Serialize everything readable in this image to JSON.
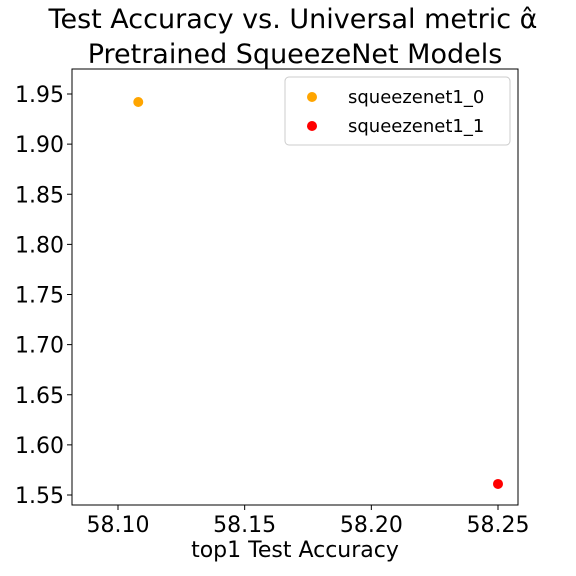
{
  "chart_data": {
    "type": "scatter",
    "title": [
      "Test Accuracy vs. Universal metric α̂",
      "Pretrained SqueezeNet Models"
    ],
    "xlabel": "top1 Test Accuracy",
    "ylabel": "",
    "xlim": [
      58.1,
      58.25
    ],
    "ylim": [
      1.55,
      1.95
    ],
    "x_ticks": [
      "58.10",
      "58.15",
      "58.20",
      "58.25"
    ],
    "y_ticks": [
      "1.55",
      "1.60",
      "1.65",
      "1.70",
      "1.75",
      "1.80",
      "1.85",
      "1.90",
      "1.95"
    ],
    "grid": false,
    "legend_position": "top-right",
    "series": [
      {
        "name": "squeezenet1_0",
        "color": "#FFA500",
        "points": [
          {
            "x": 58.108,
            "y": 1.942
          }
        ]
      },
      {
        "name": "squeezenet1_1",
        "color": "#FF0000",
        "points": [
          {
            "x": 58.25,
            "y": 1.561
          }
        ]
      }
    ]
  }
}
